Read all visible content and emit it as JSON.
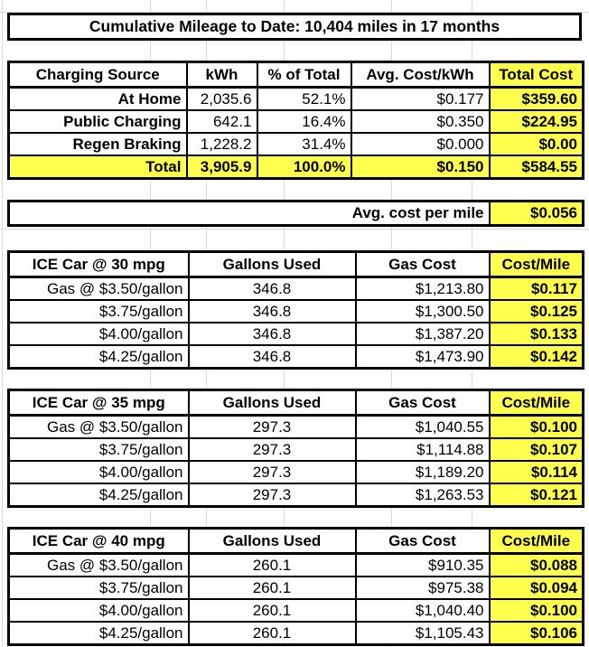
{
  "title": "Cumulative Mileage to Date: 10,404 miles in 17 months",
  "colors": {
    "highlight": "#FFFF4D",
    "border": "#000000",
    "gridline": "#D9D9D9",
    "background": "#FFFFFF"
  },
  "charging_table": {
    "headers": [
      "Charging Source",
      "kWh",
      "% of Total",
      "Avg. Cost/kWh",
      "Total Cost"
    ],
    "rows": [
      {
        "label": "At Home",
        "kwh": "2,035.6",
        "pct": "52.1%",
        "avg_cost": "$0.177",
        "total_cost": "$359.60"
      },
      {
        "label": "Public Charging",
        "kwh": "642.1",
        "pct": "16.4%",
        "avg_cost": "$0.350",
        "total_cost": "$224.95"
      },
      {
        "label": "Regen Braking",
        "kwh": "1,228.2",
        "pct": "31.4%",
        "avg_cost": "$0.000",
        "total_cost": "$0.00"
      },
      {
        "label": "Total",
        "kwh": "3,905.9",
        "pct": "100.0%",
        "avg_cost": "$0.150",
        "total_cost": "$584.55",
        "is_total": true
      }
    ]
  },
  "avg_cost_per_mile": {
    "label": "Avg. cost per mile",
    "value": "$0.056"
  },
  "ice_tables": [
    {
      "headers": [
        "ICE Car @ 30 mpg",
        "Gallons Used",
        "Gas Cost",
        "Cost/Mile"
      ],
      "rows": [
        {
          "label": "Gas @ $3.50/gallon",
          "gallons": "346.8",
          "gas_cost": "$1,213.80",
          "cost_per_mile": "$0.117"
        },
        {
          "label": "$3.75/gallon",
          "gallons": "346.8",
          "gas_cost": "$1,300.50",
          "cost_per_mile": "$0.125"
        },
        {
          "label": "$4.00/gallon",
          "gallons": "346.8",
          "gas_cost": "$1,387.20",
          "cost_per_mile": "$0.133"
        },
        {
          "label": "$4.25/gallon",
          "gallons": "346.8",
          "gas_cost": "$1,473.90",
          "cost_per_mile": "$0.142"
        }
      ]
    },
    {
      "headers": [
        "ICE Car @ 35 mpg",
        "Gallons Used",
        "Gas Cost",
        "Cost/Mile"
      ],
      "rows": [
        {
          "label": "Gas @ $3.50/gallon",
          "gallons": "297.3",
          "gas_cost": "$1,040.55",
          "cost_per_mile": "$0.100"
        },
        {
          "label": "$3.75/gallon",
          "gallons": "297.3",
          "gas_cost": "$1,114.88",
          "cost_per_mile": "$0.107"
        },
        {
          "label": "$4.00/gallon",
          "gallons": "297.3",
          "gas_cost": "$1,189.20",
          "cost_per_mile": "$0.114"
        },
        {
          "label": "$4.25/gallon",
          "gallons": "297.3",
          "gas_cost": "$1,263.53",
          "cost_per_mile": "$0.121"
        }
      ]
    },
    {
      "headers": [
        "ICE Car @ 40 mpg",
        "Gallons Used",
        "Gas Cost",
        "Cost/Mile"
      ],
      "rows": [
        {
          "label": "Gas @ $3.50/gallon",
          "gallons": "260.1",
          "gas_cost": "$910.35",
          "cost_per_mile": "$0.088"
        },
        {
          "label": "$3.75/gallon",
          "gallons": "260.1",
          "gas_cost": "$975.38",
          "cost_per_mile": "$0.094"
        },
        {
          "label": "$4.00/gallon",
          "gallons": "260.1",
          "gas_cost": "$1,040.40",
          "cost_per_mile": "$0.100"
        },
        {
          "label": "$4.25/gallon",
          "gallons": "260.1",
          "gas_cost": "$1,105.43",
          "cost_per_mile": "$0.106"
        }
      ]
    }
  ]
}
